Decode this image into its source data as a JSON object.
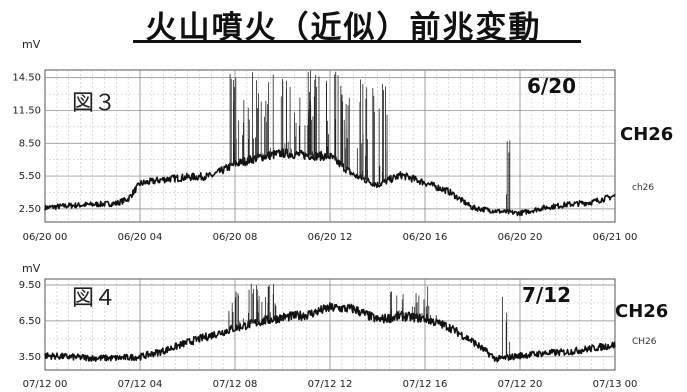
{
  "page": {
    "title": "火山噴火（近似）前兆変動"
  },
  "chart_data": [
    {
      "type": "line",
      "figure_label": "図３",
      "date_label": "6/20",
      "channel_label": "CH26",
      "trace_label": "ch26",
      "unit_label": "mV",
      "x_tick_labels": [
        "06/20 00",
        "06/20 04",
        "06/20 08",
        "06/20 12",
        "06/20 16",
        "06/20 20",
        "06/21 00"
      ],
      "y_tick_labels": [
        "2.50",
        "5.50",
        "8.50",
        "11.50",
        "14.50"
      ],
      "ylim": [
        1.3,
        15.2
      ],
      "series": [
        {
          "x_hours": [
            0,
            1,
            2,
            3,
            3.5,
            4,
            5,
            6,
            7,
            8,
            9,
            10,
            11,
            12,
            13,
            14,
            15,
            16,
            17,
            18,
            19,
            20,
            21,
            22,
            23,
            24
          ],
          "values": [
            2.6,
            2.8,
            2.9,
            3.0,
            3.4,
            4.8,
            5.2,
            5.4,
            5.5,
            6.6,
            7.2,
            7.6,
            7.4,
            7.3,
            5.6,
            4.7,
            5.6,
            4.9,
            4.1,
            2.6,
            2.3,
            2.1,
            2.6,
            2.9,
            3.1,
            3.7
          ]
        }
      ]
    },
    {
      "type": "line",
      "figure_label": "図４",
      "date_label": "7/12",
      "channel_label": "CH26",
      "trace_label": "CH26",
      "unit_label": "mV",
      "x_tick_labels": [
        "07/12 00",
        "07/12 04",
        "07/12 08",
        "07/12 12",
        "07/12 16",
        "07/12 20",
        "07/13 00"
      ],
      "y_tick_labels": [
        "3.50",
        "6.50",
        "9.50"
      ],
      "ylim": [
        2.4,
        10.0
      ],
      "series": [
        {
          "x_hours": [
            0,
            1,
            2,
            3,
            4,
            5,
            6,
            7,
            8,
            9,
            10,
            11,
            12,
            13,
            14,
            15,
            16,
            17,
            18,
            19,
            20,
            21,
            22,
            23,
            24
          ],
          "values": [
            3.6,
            3.5,
            3.4,
            3.4,
            3.5,
            4.0,
            4.7,
            5.3,
            5.9,
            6.4,
            6.8,
            7.0,
            7.6,
            7.5,
            6.6,
            6.9,
            6.7,
            6.0,
            4.8,
            3.3,
            3.6,
            3.8,
            3.9,
            4.2,
            4.5
          ]
        }
      ]
    }
  ]
}
